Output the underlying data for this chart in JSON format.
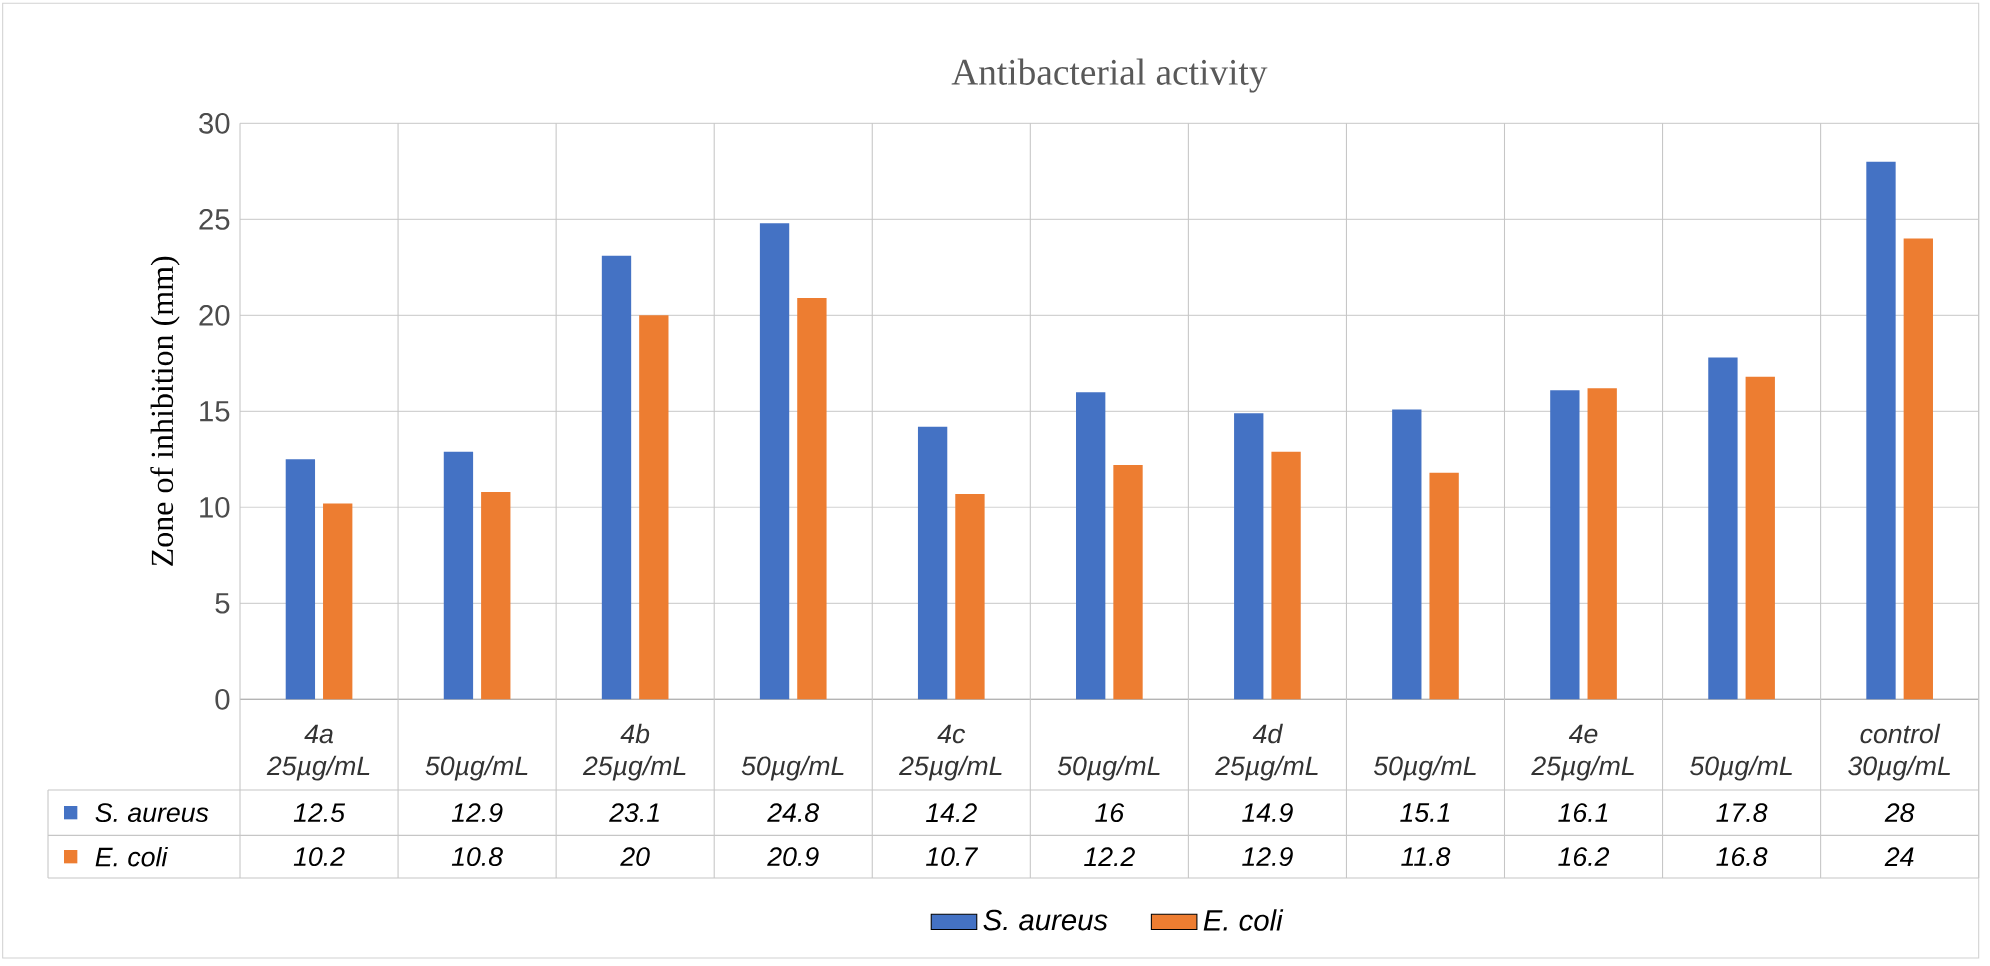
{
  "chart_data": {
    "type": "bar",
    "title": "Antibacterial activity",
    "ylabel": "Zone of inhibition (mm)",
    "categories": [
      "4a 25µg/mL",
      "50µg/mL",
      "4b 25µg/mL",
      "50µg/mL",
      "4c 25µg/mL",
      "50µg/mL",
      "4d 25µg/mL",
      "50µg/mL",
      "4e 25µg/mL",
      "50µg/mL",
      "control 30µg/mL"
    ],
    "series": [
      {
        "name": "S. aureus",
        "color": "#4472c4",
        "values": [
          12.5,
          12.9,
          23.1,
          24.8,
          14.2,
          16,
          14.9,
          15.1,
          16.1,
          17.8,
          28
        ]
      },
      {
        "name": "E. coli",
        "color": "#ed7d31",
        "values": [
          10.2,
          10.8,
          20,
          20.9,
          10.7,
          12.2,
          12.9,
          11.8,
          16.2,
          16.8,
          24
        ]
      }
    ],
    "ylim": [
      0,
      30
    ],
    "yticks": [
      0,
      5,
      10,
      15,
      20,
      25,
      30
    ],
    "grid": "y",
    "legend": "bottom",
    "data_labels": true
  }
}
